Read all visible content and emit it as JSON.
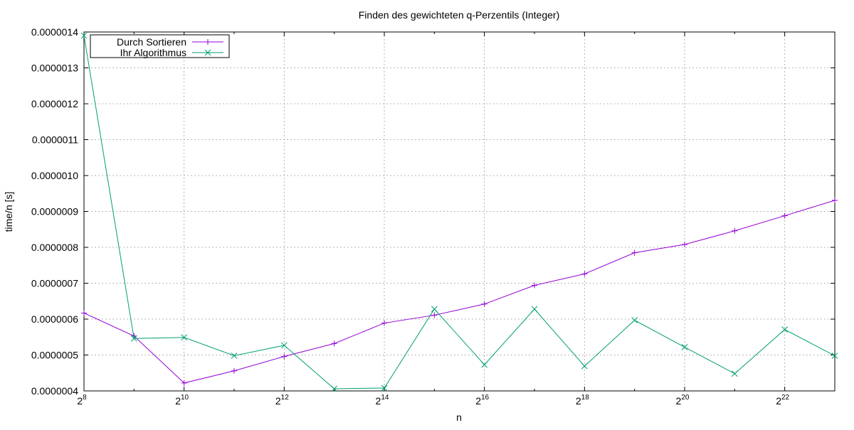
{
  "chart_data": {
    "type": "line",
    "title": "Finden des gewichteten q-Perzentils (Integer)",
    "xlabel": "n",
    "ylabel": "time/n [s]",
    "x_scale": "log2",
    "xlim": [
      256,
      8388608
    ],
    "ylim": [
      4e-07,
      1.4e-06
    ],
    "grid": true,
    "legend_position": "top-left",
    "x_tick_labels": [
      {
        "base": "2",
        "exp": "8"
      },
      {
        "base": "2",
        "exp": "10"
      },
      {
        "base": "2",
        "exp": "12"
      },
      {
        "base": "2",
        "exp": "14"
      },
      {
        "base": "2",
        "exp": "16"
      },
      {
        "base": "2",
        "exp": "18"
      },
      {
        "base": "2",
        "exp": "20"
      },
      {
        "base": "2",
        "exp": "22"
      }
    ],
    "y_ticks": [
      "0.0000004",
      "0.0000005",
      "0.0000006",
      "0.0000007",
      "0.0000008",
      "0.0000009",
      "0.0000010",
      "0.0000011",
      "0.0000012",
      "0.0000013",
      "0.0000014"
    ],
    "x": [
      256,
      512,
      1024,
      2048,
      4096,
      8192,
      16384,
      32768,
      65536,
      131072,
      262144,
      524288,
      1048576,
      2097152,
      4194304,
      8388608
    ],
    "series": [
      {
        "name": "Durch Sortieren",
        "color": "#9400d3",
        "marker": "plus",
        "values": [
          6.17e-07,
          5.53e-07,
          4.22e-07,
          4.56e-07,
          4.96e-07,
          5.32e-07,
          5.89e-07,
          6.11e-07,
          6.42e-07,
          6.94e-07,
          7.26e-07,
          7.85e-07,
          8.08e-07,
          8.46e-07,
          8.88e-07,
          9.31e-07
        ]
      },
      {
        "name": "Ihr Algorithmus",
        "color": "#009e73",
        "marker": "cross",
        "values": [
          1.39e-06,
          5.46e-07,
          5.49e-07,
          4.98e-07,
          5.27e-07,
          4.06e-07,
          4.08e-07,
          6.28e-07,
          4.73e-07,
          6.28e-07,
          4.69e-07,
          5.97e-07,
          5.22e-07,
          4.48e-07,
          5.71e-07,
          4.98e-07
        ]
      }
    ]
  }
}
